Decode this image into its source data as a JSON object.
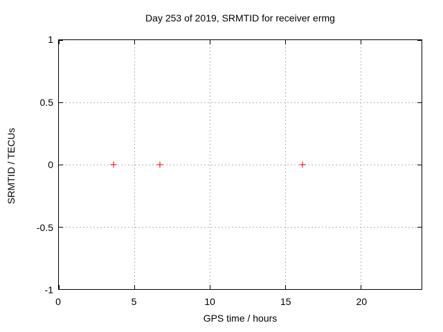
{
  "chart_data": {
    "type": "scatter",
    "title": "Day 253 of 2019, SRMTID for receiver ermg",
    "xlabel": "GPS time / hours",
    "ylabel": "SRMTID / TECUs",
    "xlim": [
      0,
      24
    ],
    "ylim": [
      -1,
      1
    ],
    "xticks": [
      0,
      5,
      10,
      15,
      20
    ],
    "xtick_labels": [
      "0",
      "5",
      "10",
      "15",
      "20"
    ],
    "yticks": [
      1,
      0.5,
      0,
      -0.5,
      -1
    ],
    "ytick_labels": [
      "1",
      "0.5",
      "0",
      "-0.5",
      "-1"
    ],
    "grid": true,
    "legend": "none",
    "series": [
      {
        "name": "SRMTID",
        "marker": "plus",
        "color": "#ff0000",
        "points": [
          {
            "x": 3.6,
            "y": 0
          },
          {
            "x": 6.7,
            "y": 0
          },
          {
            "x": 16.1,
            "y": 0
          }
        ]
      }
    ],
    "colors": {
      "border": "#000000",
      "grid": "#b5b5b5",
      "text": "#000000",
      "background": "#ffffff",
      "marker": "#ff0000"
    }
  }
}
